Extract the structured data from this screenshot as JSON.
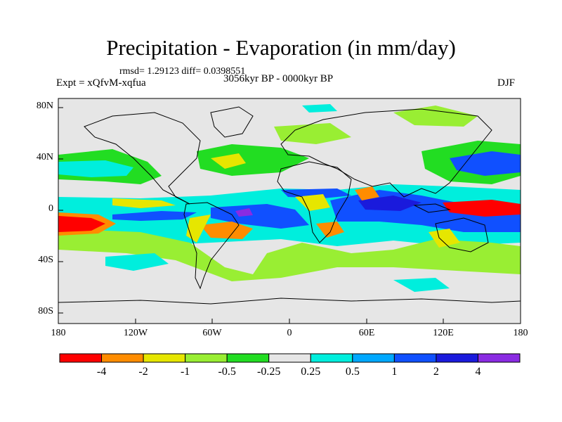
{
  "figure": {
    "title": "Precipitation - Evaporation (in mm/day)",
    "stats": "rmsd= 1.29123 diff= 0.0398551",
    "experiment": "Expt = xQfvM-xqfua",
    "period": "3056kyr BP - 0000kyr BP",
    "season": "DJF"
  },
  "axes": {
    "lat_labels": [
      "80N",
      "40N",
      "0",
      "40S",
      "80S"
    ],
    "lon_labels": [
      "180",
      "120W",
      "60W",
      "0",
      "60E",
      "120E",
      "180"
    ]
  },
  "colorbar": {
    "labels": [
      "-4",
      "-2",
      "-1",
      "-0.5",
      "-0.25",
      "0.25",
      "0.5",
      "1",
      "2",
      "4"
    ],
    "colors": [
      "#ff0000",
      "#ff8c00",
      "#e6e600",
      "#99ee33",
      "#22dd22",
      "#e6e6e6",
      "#00eedd",
      "#00a8ff",
      "#1050ff",
      "#1a1adc",
      "#8a2be2"
    ]
  },
  "palette": {
    "background": "#e6e6e6",
    "coastline": "#000000"
  }
}
